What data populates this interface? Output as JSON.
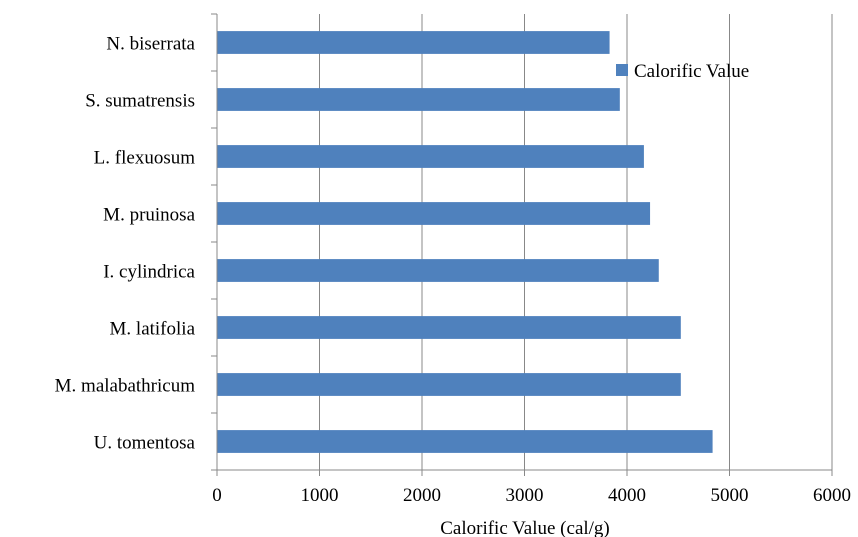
{
  "chart_data": {
    "type": "bar",
    "orientation": "horizontal",
    "categories": [
      "N. biserrata",
      "S. sumatrensis",
      "L. flexuosum",
      "M. pruinosa",
      "I. cylindrica",
      "M. latifolia",
      "M. malabathricum",
      "U. tomentosa"
    ],
    "series": [
      {
        "name": "Calorific Value",
        "values": [
          3830,
          3930,
          4165,
          4225,
          4310,
          4525,
          4525,
          4835
        ],
        "color": "#4f81bd"
      }
    ],
    "xlabel": "Calorific Value (cal/g)",
    "ylabel": "",
    "xlim": [
      0,
      6000
    ],
    "xticks": [
      0,
      1000,
      2000,
      3000,
      4000,
      5000,
      6000
    ],
    "grid": "vertical",
    "legend_position": "top-right"
  }
}
